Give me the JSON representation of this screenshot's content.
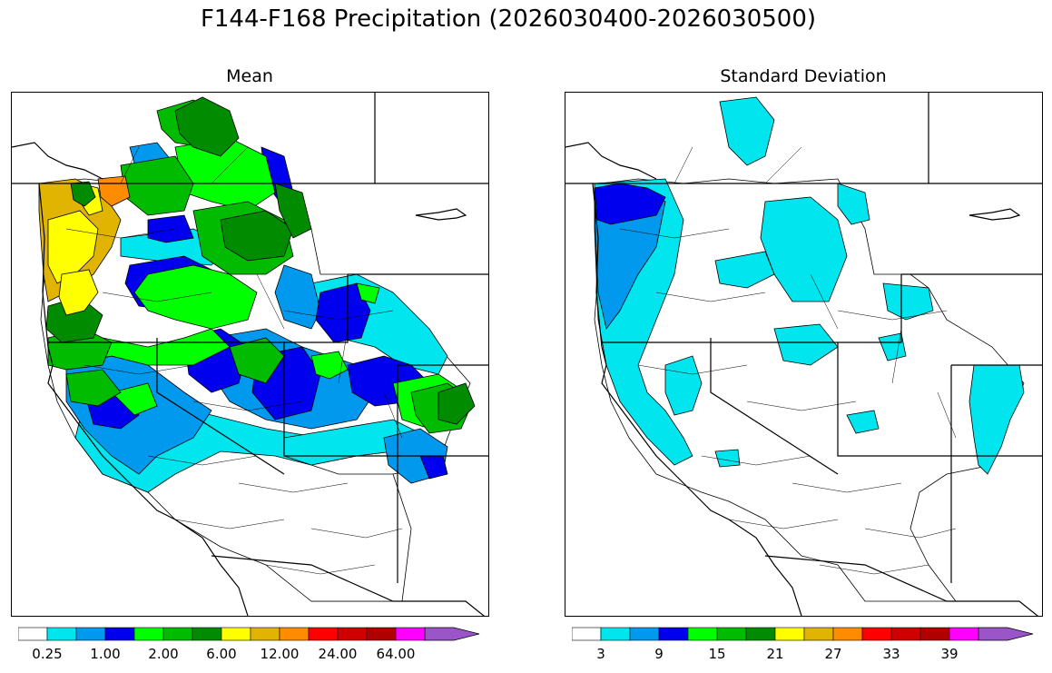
{
  "figure": {
    "title": "F144-F168 Precipitation (2026030400-2026030500)"
  },
  "panels": [
    {
      "subtitle": "Mean",
      "colorbar": {
        "colors": [
          "#ffffff",
          "#00e5ee",
          "#0099ee",
          "#0000ee",
          "#00ff00",
          "#00bb00",
          "#008b00",
          "#ffff00",
          "#e0b400",
          "#ff8c00",
          "#ff0000",
          "#d00000",
          "#b00000",
          "#ff00ff",
          "#9a55c8"
        ],
        "tick_labels": [
          "0.25",
          "1.00",
          "2.00",
          "6.00",
          "12.00",
          "24.00",
          "64.00"
        ],
        "tick_boundary_index": [
          1,
          3,
          5,
          7,
          9,
          11,
          13
        ]
      }
    },
    {
      "subtitle": "Standard Deviation",
      "colorbar": {
        "colors": [
          "#ffffff",
          "#00e5ee",
          "#0099ee",
          "#0000ee",
          "#00ff00",
          "#00bb00",
          "#008b00",
          "#ffff00",
          "#e0b400",
          "#ff8c00",
          "#ff0000",
          "#d00000",
          "#b00000",
          "#ff00ff",
          "#9a55c8"
        ],
        "tick_labels": [
          "3",
          "9",
          "15",
          "21",
          "27",
          "33",
          "39"
        ],
        "tick_boundary_index": [
          1,
          3,
          5,
          7,
          9,
          11,
          13
        ]
      }
    }
  ],
  "legend_colors": {
    "white": "#ffffff",
    "cyan": "#00e5ee",
    "sky": "#0099ee",
    "blue": "#0000ee",
    "lime": "#00ff00",
    "green": "#00bb00",
    "darkgreen": "#008b00",
    "yellow": "#ffff00",
    "gold": "#e0b400",
    "orange": "#ff8c00"
  }
}
